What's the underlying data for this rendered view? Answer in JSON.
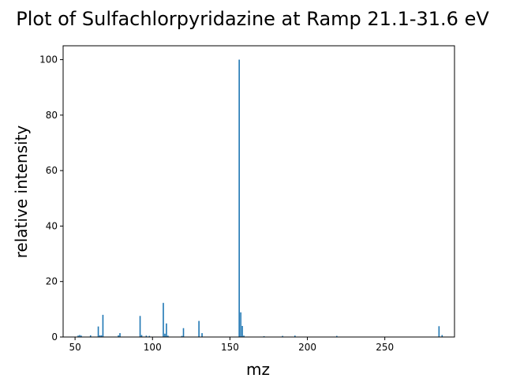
{
  "chart_data": {
    "type": "bar",
    "title": "Plot of Sulfachlorpyridazine at Ramp 21.1-31.6 eV",
    "xlabel": "mz",
    "ylabel": "relative intensity",
    "xlim": [
      42.3,
      295.0
    ],
    "ylim": [
      0,
      105
    ],
    "xticks": [
      50,
      100,
      150,
      200,
      250
    ],
    "yticks": [
      0,
      20,
      40,
      60,
      80,
      100
    ],
    "grid": false,
    "legend": "none",
    "bar_color": "#1f77b4",
    "series": [
      {
        "x": [
          52.0,
          53.0,
          54.0,
          60.0,
          65.0,
          66.0,
          67.0,
          68.0,
          78.0,
          79.0,
          92.0,
          93.0,
          96.0,
          98.0,
          107.0,
          108.0,
          109.0,
          110.0,
          119.0,
          120.0,
          130.0,
          132.0,
          156.0,
          157.0,
          158.0,
          159.0,
          172.0,
          184.0,
          192.0,
          219.0,
          285.0,
          287.0
        ],
        "values": [
          0.5,
          0.7,
          0.5,
          0.6,
          3.8,
          0.6,
          0.6,
          8.0,
          0.6,
          1.4,
          7.6,
          0.7,
          0.5,
          0.4,
          12.3,
          1.2,
          4.9,
          0.5,
          0.4,
          3.2,
          5.8,
          1.4,
          100.0,
          8.9,
          4.0,
          0.5,
          0.3,
          0.4,
          0.5,
          0.4,
          3.9,
          0.7
        ]
      }
    ]
  }
}
